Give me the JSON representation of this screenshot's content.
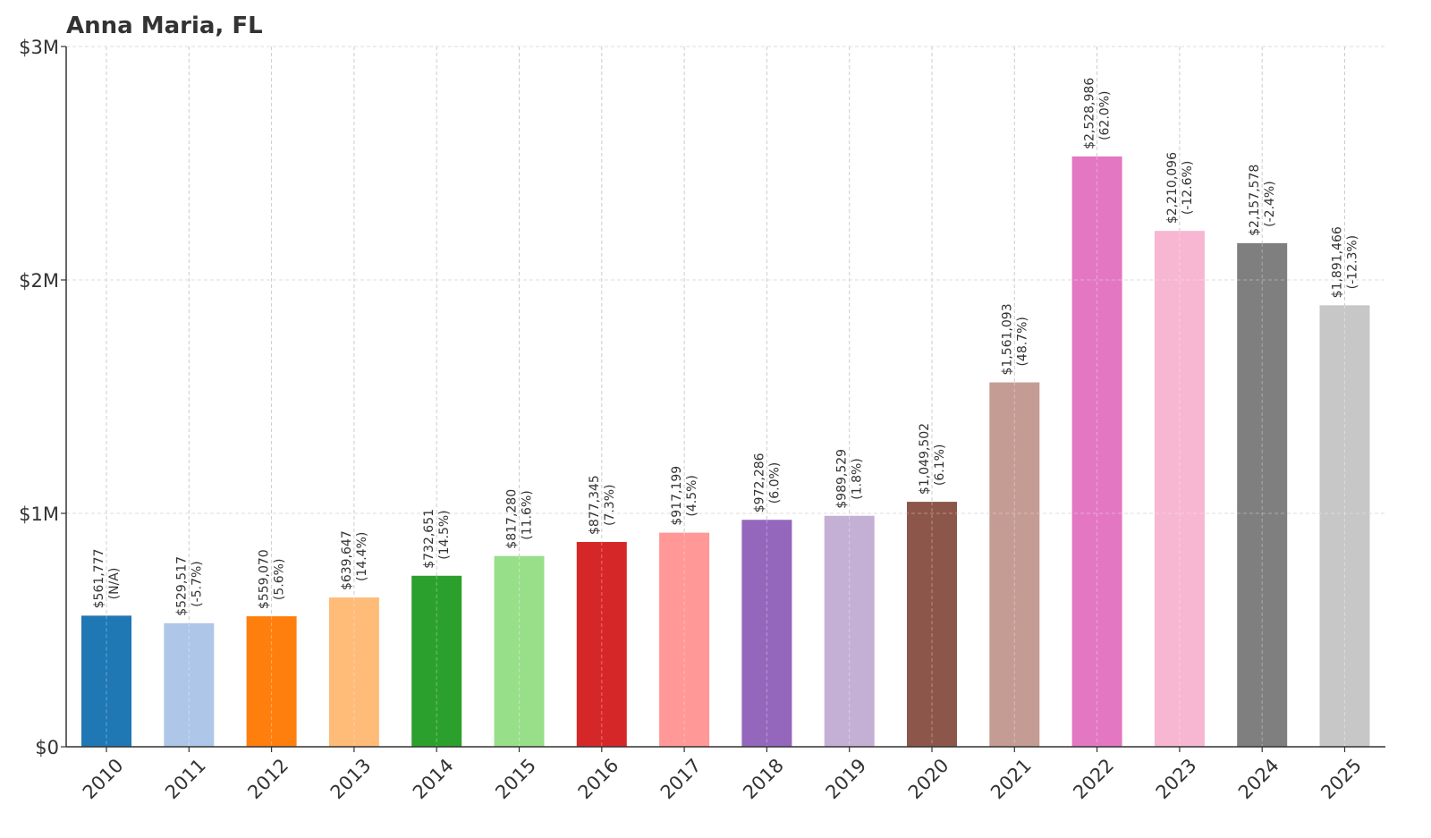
{
  "chart_data": {
    "type": "bar",
    "title": "Anna Maria, FL",
    "xlabel": "",
    "ylabel": "",
    "ylim": [
      0,
      3000000
    ],
    "y_ticks": [
      {
        "value": 0,
        "label": "$0"
      },
      {
        "value": 1000000,
        "label": "$1M"
      },
      {
        "value": 2000000,
        "label": "$2M"
      },
      {
        "value": 3000000,
        "label": "$3M"
      }
    ],
    "grid": true,
    "categories": [
      "2010",
      "2011",
      "2012",
      "2013",
      "2014",
      "2015",
      "2016",
      "2017",
      "2018",
      "2019",
      "2020",
      "2021",
      "2022",
      "2023",
      "2024",
      "2025"
    ],
    "values": [
      561777,
      529517,
      559070,
      639647,
      732651,
      817280,
      877345,
      917199,
      972286,
      989529,
      1049502,
      1561093,
      2528986,
      2210096,
      2157578,
      1891466
    ],
    "value_labels": [
      "$561,777",
      "$529,517",
      "$559,070",
      "$639,647",
      "$732,651",
      "$817,280",
      "$877,345",
      "$917,199",
      "$972,286",
      "$989,529",
      "$1,049,502",
      "$1,561,093",
      "$2,528,986",
      "$2,210,096",
      "$2,157,578",
      "$1,891,466"
    ],
    "change_labels": [
      "(N/A)",
      "(-5.7%)",
      "(5.6%)",
      "(14.4%)",
      "(14.5%)",
      "(11.6%)",
      "(7.3%)",
      "(4.5%)",
      "(6.0%)",
      "(1.8%)",
      "(6.1%)",
      "(48.7%)",
      "(62.0%)",
      "(-12.6%)",
      "(-2.4%)",
      "(-12.3%)"
    ],
    "colors": [
      "#1f77b4",
      "#aec7e8",
      "#ff7f0e",
      "#ffbb78",
      "#2ca02c",
      "#98df8a",
      "#d62728",
      "#ff9896",
      "#9467bd",
      "#c5b0d5",
      "#8c564b",
      "#c49c94",
      "#e377c2",
      "#f7b6d2",
      "#7f7f7f",
      "#c7c7c7"
    ]
  }
}
